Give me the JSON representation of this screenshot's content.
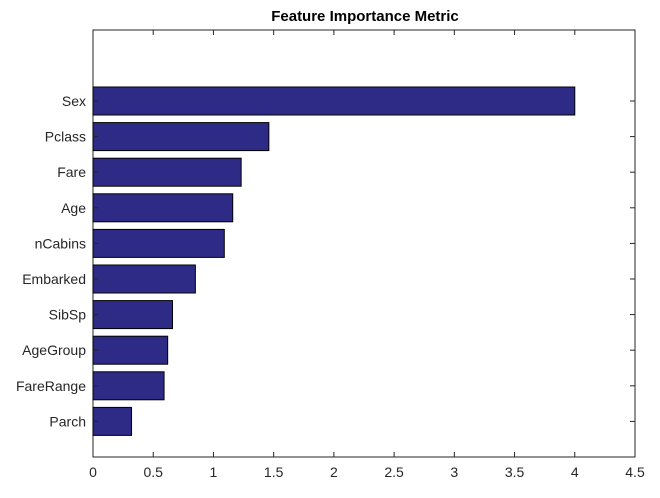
{
  "chart_data": {
    "type": "bar",
    "orientation": "horizontal",
    "title": "Feature Importance Metric",
    "xlabel": "",
    "ylabel": "",
    "categories": [
      "Sex",
      "Pclass",
      "Fare",
      "Age",
      "nCabins",
      "Embarked",
      "SibSp",
      "AgeGroup",
      "FareRange",
      "Parch"
    ],
    "values": [
      4.0,
      1.46,
      1.23,
      1.16,
      1.09,
      0.85,
      0.66,
      0.62,
      0.59,
      0.32
    ],
    "xlim": [
      0,
      4.5
    ],
    "xticks": [
      0,
      0.5,
      1,
      1.5,
      2,
      2.5,
      3,
      3.5,
      4,
      4.5
    ],
    "xtick_labels": [
      "0",
      "0.5",
      "1",
      "1.5",
      "2",
      "2.5",
      "3",
      "3.5",
      "4",
      "4.5"
    ],
    "grid": false,
    "legend": "none",
    "colors": {
      "bar": "#2e2b87",
      "bar_edge": "#000000",
      "axis": "#262626"
    }
  }
}
